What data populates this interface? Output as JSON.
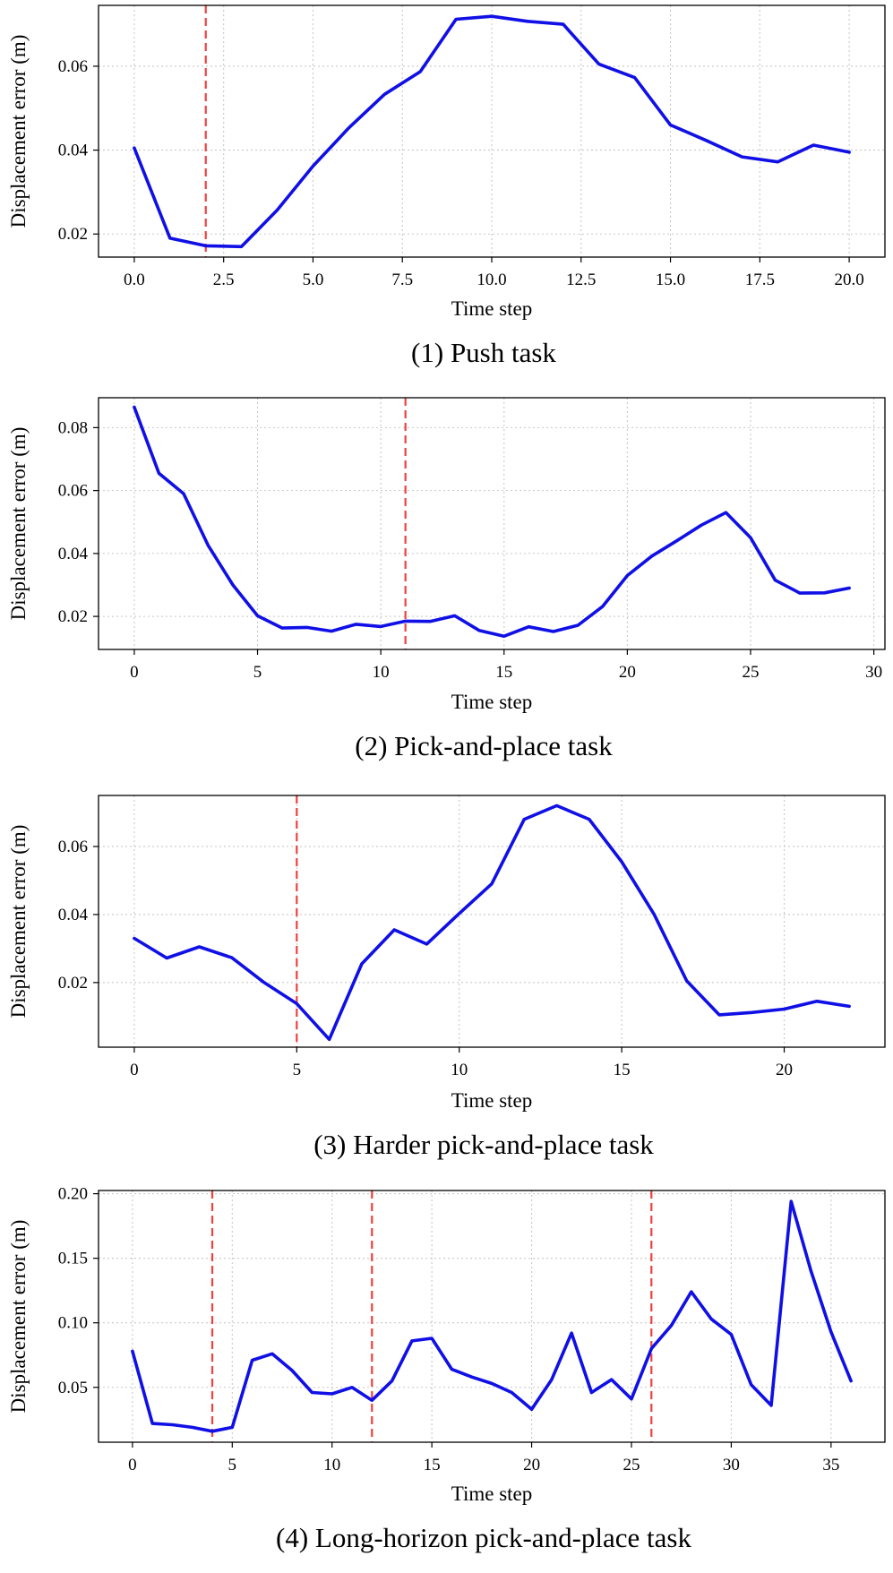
{
  "colors": {
    "series": "#1010e6",
    "marker": "#f04040",
    "grid": "#c8c8c8"
  },
  "chart_data": [
    {
      "type": "line",
      "caption": "(1) Push task",
      "xlabel": "Time step",
      "ylabel": "Displacement error (m)",
      "xlim": [
        -1,
        21
      ],
      "ylim": [
        0.0145,
        0.0745
      ],
      "xticks": [
        0,
        2.5,
        5,
        7.5,
        10,
        12.5,
        15,
        17.5,
        20
      ],
      "xtick_labels": [
        "0.0",
        "2.5",
        "5.0",
        "7.5",
        "10.0",
        "12.5",
        "15.0",
        "17.5",
        "20.0"
      ],
      "yticks": [
        0.02,
        0.04,
        0.06
      ],
      "ytick_labels": [
        "0.02",
        "0.04",
        "0.06"
      ],
      "grid": true,
      "markers_x": [
        2
      ],
      "series": [
        {
          "name": "Displacement error",
          "x": [
            0,
            1,
            2,
            3,
            4,
            5,
            6,
            7,
            8,
            9,
            10,
            11,
            12,
            13,
            14,
            15,
            16,
            17,
            18,
            19,
            20
          ],
          "y": [
            0.0405,
            0.019,
            0.0172,
            0.017,
            0.0257,
            0.0362,
            0.0453,
            0.0533,
            0.0587,
            0.0712,
            0.0719,
            0.0707,
            0.07,
            0.0605,
            0.0573,
            0.046,
            0.0423,
            0.0384,
            0.0372,
            0.0412,
            0.0395
          ]
        }
      ]
    },
    {
      "type": "line",
      "caption": "(2) Pick-and-place task",
      "xlabel": "Time step",
      "ylabel": "Displacement error (m)",
      "xlim": [
        -1.45,
        30.45
      ],
      "ylim": [
        0.0095,
        0.0895
      ],
      "xticks": [
        0,
        5,
        10,
        15,
        20,
        25,
        30
      ],
      "xtick_labels": [
        "0",
        "5",
        "10",
        "15",
        "20",
        "25",
        "30"
      ],
      "yticks": [
        0.02,
        0.04,
        0.06,
        0.08
      ],
      "ytick_labels": [
        "0.02",
        "0.04",
        "0.06",
        "0.08"
      ],
      "grid": true,
      "markers_x": [
        11
      ],
      "series": [
        {
          "name": "Displacement error",
          "x": [
            0,
            1,
            2,
            3,
            4,
            5,
            6,
            7,
            8,
            9,
            10,
            11,
            12,
            13,
            14,
            15,
            16,
            17,
            18,
            19,
            20,
            21,
            22,
            23,
            24,
            25,
            26,
            27,
            28,
            29
          ],
          "y": [
            0.0865,
            0.0655,
            0.059,
            0.0425,
            0.03,
            0.0202,
            0.0163,
            0.0165,
            0.0153,
            0.0175,
            0.0168,
            0.0185,
            0.0184,
            0.0202,
            0.0155,
            0.0137,
            0.0167,
            0.0152,
            0.0172,
            0.0232,
            0.033,
            0.0392,
            0.044,
            0.049,
            0.053,
            0.045,
            0.0315,
            0.0274,
            0.0275,
            0.029
          ]
        }
      ]
    },
    {
      "type": "line",
      "caption": "(3) Harder pick-and-place task",
      "xlabel": "Time step",
      "ylabel": "Displacement error (m)",
      "xlim": [
        -1.1,
        23.1
      ],
      "ylim": [
        0.001,
        0.075
      ],
      "xticks": [
        0,
        5,
        10,
        15,
        20
      ],
      "xtick_labels": [
        "0",
        "5",
        "10",
        "15",
        "20"
      ],
      "yticks": [
        0.02,
        0.04,
        0.06
      ],
      "ytick_labels": [
        "0.02",
        "0.04",
        "0.06"
      ],
      "grid": true,
      "markers_x": [
        5
      ],
      "series": [
        {
          "name": "Displacement error",
          "x": [
            0,
            1,
            2,
            3,
            4,
            5,
            6,
            7,
            8,
            9,
            10,
            11,
            12,
            13,
            14,
            15,
            16,
            17,
            18,
            19,
            20,
            21,
            22
          ],
          "y": [
            0.033,
            0.0272,
            0.0305,
            0.0273,
            0.02,
            0.0138,
            0.0033,
            0.0255,
            0.0355,
            0.0313,
            0.0403,
            0.049,
            0.068,
            0.072,
            0.068,
            0.0555,
            0.04,
            0.0205,
            0.0105,
            0.0112,
            0.0122,
            0.0145,
            0.013
          ]
        }
      ]
    },
    {
      "type": "line",
      "caption": "(4) Long-horizon pick-and-place task",
      "xlabel": "Time step",
      "ylabel": "Displacement error (m)",
      "xlim": [
        -1.7,
        37.7
      ],
      "ylim": [
        0.0075,
        0.2025
      ],
      "xticks": [
        0,
        5,
        10,
        15,
        20,
        25,
        30,
        35
      ],
      "xtick_labels": [
        "0",
        "5",
        "10",
        "15",
        "20",
        "25",
        "30",
        "35"
      ],
      "yticks": [
        0.05,
        0.1,
        0.15,
        0.2
      ],
      "ytick_labels": [
        "0.05",
        "0.10",
        "0.15",
        "0.20"
      ],
      "grid": true,
      "markers_x": [
        4,
        12,
        26
      ],
      "series": [
        {
          "name": "Displacement error",
          "x": [
            0,
            1,
            2,
            3,
            4,
            5,
            6,
            7,
            8,
            9,
            10,
            11,
            12,
            13,
            14,
            15,
            16,
            17,
            18,
            19,
            20,
            21,
            22,
            23,
            24,
            25,
            26,
            27,
            28,
            29,
            30,
            31,
            32,
            33,
            34,
            35,
            36
          ],
          "y": [
            0.078,
            0.022,
            0.021,
            0.019,
            0.016,
            0.019,
            0.071,
            0.076,
            0.063,
            0.046,
            0.045,
            0.05,
            0.04,
            0.055,
            0.086,
            0.088,
            0.064,
            0.058,
            0.053,
            0.046,
            0.033,
            0.056,
            0.092,
            0.046,
            0.056,
            0.041,
            0.08,
            0.098,
            0.124,
            0.103,
            0.091,
            0.052,
            0.036,
            0.194,
            0.14,
            0.093,
            0.055
          ]
        }
      ]
    }
  ]
}
